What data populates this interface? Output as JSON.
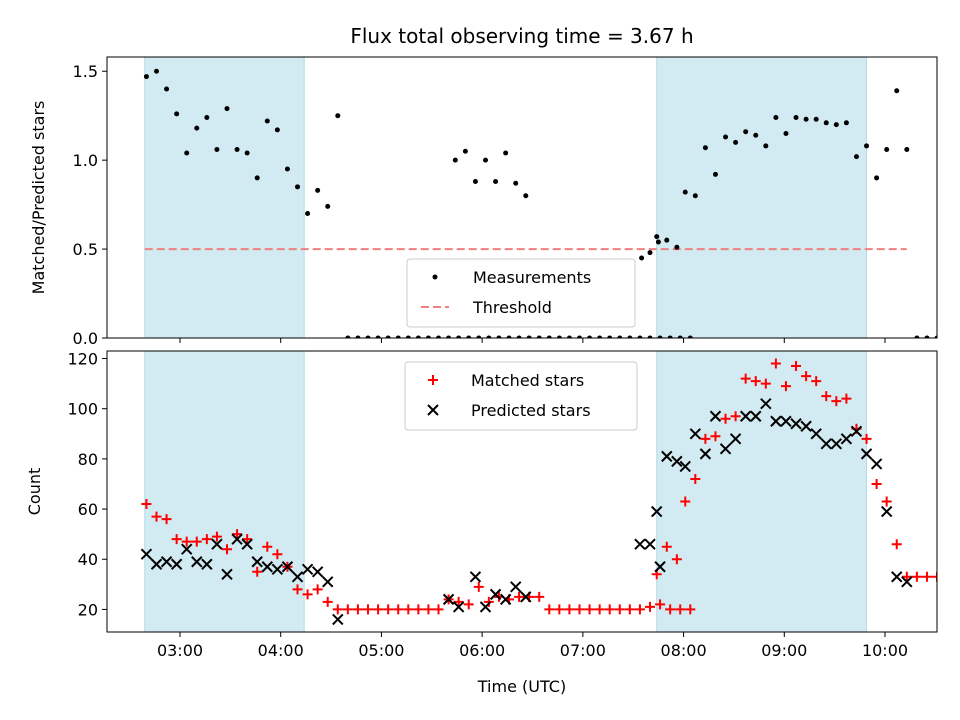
{
  "chart_data": {
    "type": "scatter",
    "title": "Flux total observing time = 3.67 h",
    "xlabel": "Time (UTC)",
    "x_ticks": [
      "03:00",
      "04:00",
      "05:00",
      "06:00",
      "07:00",
      "08:00",
      "09:00",
      "10:00"
    ],
    "shaded_intervals": [
      [
        "02:39",
        "04:14"
      ],
      [
        "07:44",
        "09:49"
      ]
    ],
    "shade_color": "#add8e6",
    "panels": [
      {
        "ylabel": "Matched/Predicted stars",
        "ylim": [
          0,
          1.58
        ],
        "y_ticks": [
          "0.0",
          "0.5",
          "1.0",
          "1.5"
        ],
        "legend_position": "lower-center",
        "threshold": {
          "name": "Threshold",
          "value": 0.5,
          "x_range": [
            "02:39",
            "10:13"
          ],
          "color": "#f08080"
        },
        "series": [
          {
            "name": "Measurements",
            "marker": "dot",
            "color": "#000000",
            "points": [
              [
                "02:40",
                1.47
              ],
              [
                "02:46",
                1.5
              ],
              [
                "02:52",
                1.4
              ],
              [
                "02:58",
                1.26
              ],
              [
                "03:04",
                1.04
              ],
              [
                "03:10",
                1.18
              ],
              [
                "03:16",
                1.24
              ],
              [
                "03:22",
                1.06
              ],
              [
                "03:28",
                1.29
              ],
              [
                "03:34",
                1.06
              ],
              [
                "03:40",
                1.04
              ],
              [
                "03:46",
                0.9
              ],
              [
                "03:52",
                1.22
              ],
              [
                "03:58",
                1.17
              ],
              [
                "04:04",
                0.95
              ],
              [
                "04:10",
                0.85
              ],
              [
                "04:16",
                0.7
              ],
              [
                "04:22",
                0.83
              ],
              [
                "04:28",
                0.74
              ],
              [
                "04:34",
                1.25
              ],
              [
                "04:40",
                0
              ],
              [
                "04:46",
                0
              ],
              [
                "04:52",
                0
              ],
              [
                "04:58",
                0
              ],
              [
                "05:04",
                0
              ],
              [
                "05:10",
                0
              ],
              [
                "05:16",
                0
              ],
              [
                "05:22",
                0
              ],
              [
                "05:28",
                0
              ],
              [
                "05:34",
                0
              ],
              [
                "05:40",
                0
              ],
              [
                "05:46",
                0
              ],
              [
                "05:52",
                0
              ],
              [
                "05:58",
                0
              ],
              [
                "06:04",
                0
              ],
              [
                "06:10",
                0
              ],
              [
                "06:16",
                0
              ],
              [
                "06:22",
                0
              ],
              [
                "05:44",
                1.0
              ],
              [
                "05:50",
                1.05
              ],
              [
                "05:56",
                0.88
              ],
              [
                "06:02",
                1.0
              ],
              [
                "06:08",
                0.88
              ],
              [
                "06:14",
                1.04
              ],
              [
                "06:20",
                0.87
              ],
              [
                "06:26",
                0.8
              ],
              [
                "06:28",
                0
              ],
              [
                "06:34",
                0
              ],
              [
                "06:40",
                0
              ],
              [
                "06:46",
                0
              ],
              [
                "06:52",
                0
              ],
              [
                "06:58",
                0
              ],
              [
                "07:04",
                0
              ],
              [
                "07:10",
                0
              ],
              [
                "07:16",
                0
              ],
              [
                "07:22",
                0
              ],
              [
                "07:28",
                0
              ],
              [
                "07:34",
                0
              ],
              [
                "07:40",
                0
              ],
              [
                "07:46",
                0
              ],
              [
                "07:52",
                0
              ],
              [
                "07:58",
                0
              ],
              [
                "08:04",
                0
              ],
              [
                "07:35",
                0.45
              ],
              [
                "07:40",
                0.48
              ],
              [
                "07:45",
                0.54
              ],
              [
                "07:44",
                0.57
              ],
              [
                "07:50",
                0.55
              ],
              [
                "07:56",
                0.51
              ],
              [
                "08:01",
                0.82
              ],
              [
                "08:07",
                0.8
              ],
              [
                "08:13",
                1.07
              ],
              [
                "08:19",
                0.92
              ],
              [
                "08:25",
                1.13
              ],
              [
                "08:31",
                1.1
              ],
              [
                "08:37",
                1.16
              ],
              [
                "08:43",
                1.14
              ],
              [
                "08:49",
                1.08
              ],
              [
                "08:55",
                1.24
              ],
              [
                "09:01",
                1.15
              ],
              [
                "09:07",
                1.24
              ],
              [
                "09:13",
                1.23
              ],
              [
                "09:19",
                1.23
              ],
              [
                "09:25",
                1.21
              ],
              [
                "09:31",
                1.2
              ],
              [
                "09:37",
                1.21
              ],
              [
                "09:43",
                1.02
              ],
              [
                "09:49",
                1.08
              ],
              [
                "09:55",
                0.9
              ],
              [
                "10:01",
                1.06
              ],
              [
                "10:07",
                1.39
              ],
              [
                "10:13",
                1.06
              ],
              [
                "10:19",
                0
              ],
              [
                "10:25",
                0
              ],
              [
                "10:31",
                0
              ]
            ]
          }
        ]
      },
      {
        "ylabel": "Count",
        "ylim": [
          11,
          123
        ],
        "y_ticks": [
          "20",
          "40",
          "60",
          "80",
          "100",
          "120"
        ],
        "legend_position": "upper-center",
        "series": [
          {
            "name": "Matched stars",
            "marker": "plus",
            "color": "#ff0000",
            "points": [
              [
                "02:40",
                62
              ],
              [
                "02:46",
                57
              ],
              [
                "02:52",
                56
              ],
              [
                "02:58",
                48
              ],
              [
                "03:04",
                47
              ],
              [
                "03:10",
                47
              ],
              [
                "03:16",
                48
              ],
              [
                "03:22",
                49
              ],
              [
                "03:28",
                44
              ],
              [
                "03:34",
                50
              ],
              [
                "03:40",
                48
              ],
              [
                "03:46",
                35
              ],
              [
                "03:52",
                45
              ],
              [
                "03:58",
                42
              ],
              [
                "04:04",
                37
              ],
              [
                "04:10",
                28
              ],
              [
                "04:16",
                26
              ],
              [
                "04:22",
                28
              ],
              [
                "04:28",
                23
              ],
              [
                "04:34",
                20
              ],
              [
                "04:40",
                20
              ],
              [
                "04:46",
                20
              ],
              [
                "04:52",
                20
              ],
              [
                "04:58",
                20
              ],
              [
                "05:04",
                20
              ],
              [
                "05:10",
                20
              ],
              [
                "05:16",
                20
              ],
              [
                "05:22",
                20
              ],
              [
                "05:28",
                20
              ],
              [
                "05:34",
                20
              ],
              [
                "05:40",
                24
              ],
              [
                "05:46",
                23
              ],
              [
                "05:52",
                22
              ],
              [
                "05:58",
                29
              ],
              [
                "06:04",
                23
              ],
              [
                "06:10",
                25
              ],
              [
                "06:16",
                24
              ],
              [
                "06:22",
                25
              ],
              [
                "06:28",
                25
              ],
              [
                "06:34",
                25
              ],
              [
                "06:40",
                20
              ],
              [
                "06:46",
                20
              ],
              [
                "06:52",
                20
              ],
              [
                "06:58",
                20
              ],
              [
                "07:04",
                20
              ],
              [
                "07:10",
                20
              ],
              [
                "07:16",
                20
              ],
              [
                "07:22",
                20
              ],
              [
                "07:28",
                20
              ],
              [
                "07:34",
                20
              ],
              [
                "07:40",
                21
              ],
              [
                "07:46",
                22
              ],
              [
                "07:52",
                20
              ],
              [
                "07:58",
                20
              ],
              [
                "08:04",
                20
              ],
              [
                "07:44",
                34
              ],
              [
                "07:50",
                45
              ],
              [
                "07:56",
                40
              ],
              [
                "08:01",
                63
              ],
              [
                "08:07",
                72
              ],
              [
                "08:13",
                88
              ],
              [
                "08:19",
                89
              ],
              [
                "08:25",
                96
              ],
              [
                "08:31",
                97
              ],
              [
                "08:37",
                112
              ],
              [
                "08:43",
                111
              ],
              [
                "08:49",
                110
              ],
              [
                "08:55",
                118
              ],
              [
                "09:01",
                109
              ],
              [
                "09:07",
                117
              ],
              [
                "09:13",
                113
              ],
              [
                "09:19",
                111
              ],
              [
                "09:25",
                105
              ],
              [
                "09:31",
                103
              ],
              [
                "09:37",
                104
              ],
              [
                "09:43",
                92
              ],
              [
                "09:49",
                88
              ],
              [
                "09:55",
                70
              ],
              [
                "10:01",
                63
              ],
              [
                "10:07",
                46
              ],
              [
                "10:13",
                33
              ],
              [
                "10:19",
                33
              ],
              [
                "10:25",
                33
              ],
              [
                "10:31",
                33
              ]
            ]
          },
          {
            "name": "Predicted stars",
            "marker": "x",
            "color": "#000000",
            "points": [
              [
                "02:40",
                42
              ],
              [
                "02:46",
                38
              ],
              [
                "02:52",
                39
              ],
              [
                "02:58",
                38
              ],
              [
                "03:04",
                44
              ],
              [
                "03:10",
                39
              ],
              [
                "03:16",
                38
              ],
              [
                "03:22",
                46
              ],
              [
                "03:28",
                34
              ],
              [
                "03:34",
                48
              ],
              [
                "03:40",
                46
              ],
              [
                "03:46",
                39
              ],
              [
                "03:52",
                37
              ],
              [
                "03:58",
                36
              ],
              [
                "04:04",
                37
              ],
              [
                "04:10",
                33
              ],
              [
                "04:16",
                36
              ],
              [
                "04:22",
                35
              ],
              [
                "04:28",
                31
              ],
              [
                "04:34",
                16
              ],
              [
                "05:40",
                24
              ],
              [
                "05:46",
                21
              ],
              [
                "05:56",
                33
              ],
              [
                "06:02",
                21
              ],
              [
                "06:08",
                26
              ],
              [
                "06:14",
                24
              ],
              [
                "06:20",
                29
              ],
              [
                "06:26",
                25
              ],
              [
                "07:34",
                46
              ],
              [
                "07:40",
                46
              ],
              [
                "07:46",
                37
              ],
              [
                "07:44",
                59
              ],
              [
                "07:50",
                81
              ],
              [
                "07:56",
                79
              ],
              [
                "08:01",
                77
              ],
              [
                "08:07",
                90
              ],
              [
                "08:13",
                82
              ],
              [
                "08:19",
                97
              ],
              [
                "08:25",
                84
              ],
              [
                "08:31",
                88
              ],
              [
                "08:37",
                97
              ],
              [
                "08:43",
                97
              ],
              [
                "08:49",
                102
              ],
              [
                "08:55",
                95
              ],
              [
                "09:01",
                95
              ],
              [
                "09:07",
                94
              ],
              [
                "09:13",
                93
              ],
              [
                "09:19",
                90
              ],
              [
                "09:25",
                86
              ],
              [
                "09:31",
                86
              ],
              [
                "09:37",
                88
              ],
              [
                "09:43",
                91
              ],
              [
                "09:49",
                82
              ],
              [
                "09:55",
                78
              ],
              [
                "10:01",
                59
              ],
              [
                "10:07",
                33
              ],
              [
                "10:13",
                31
              ]
            ]
          }
        ]
      }
    ]
  }
}
